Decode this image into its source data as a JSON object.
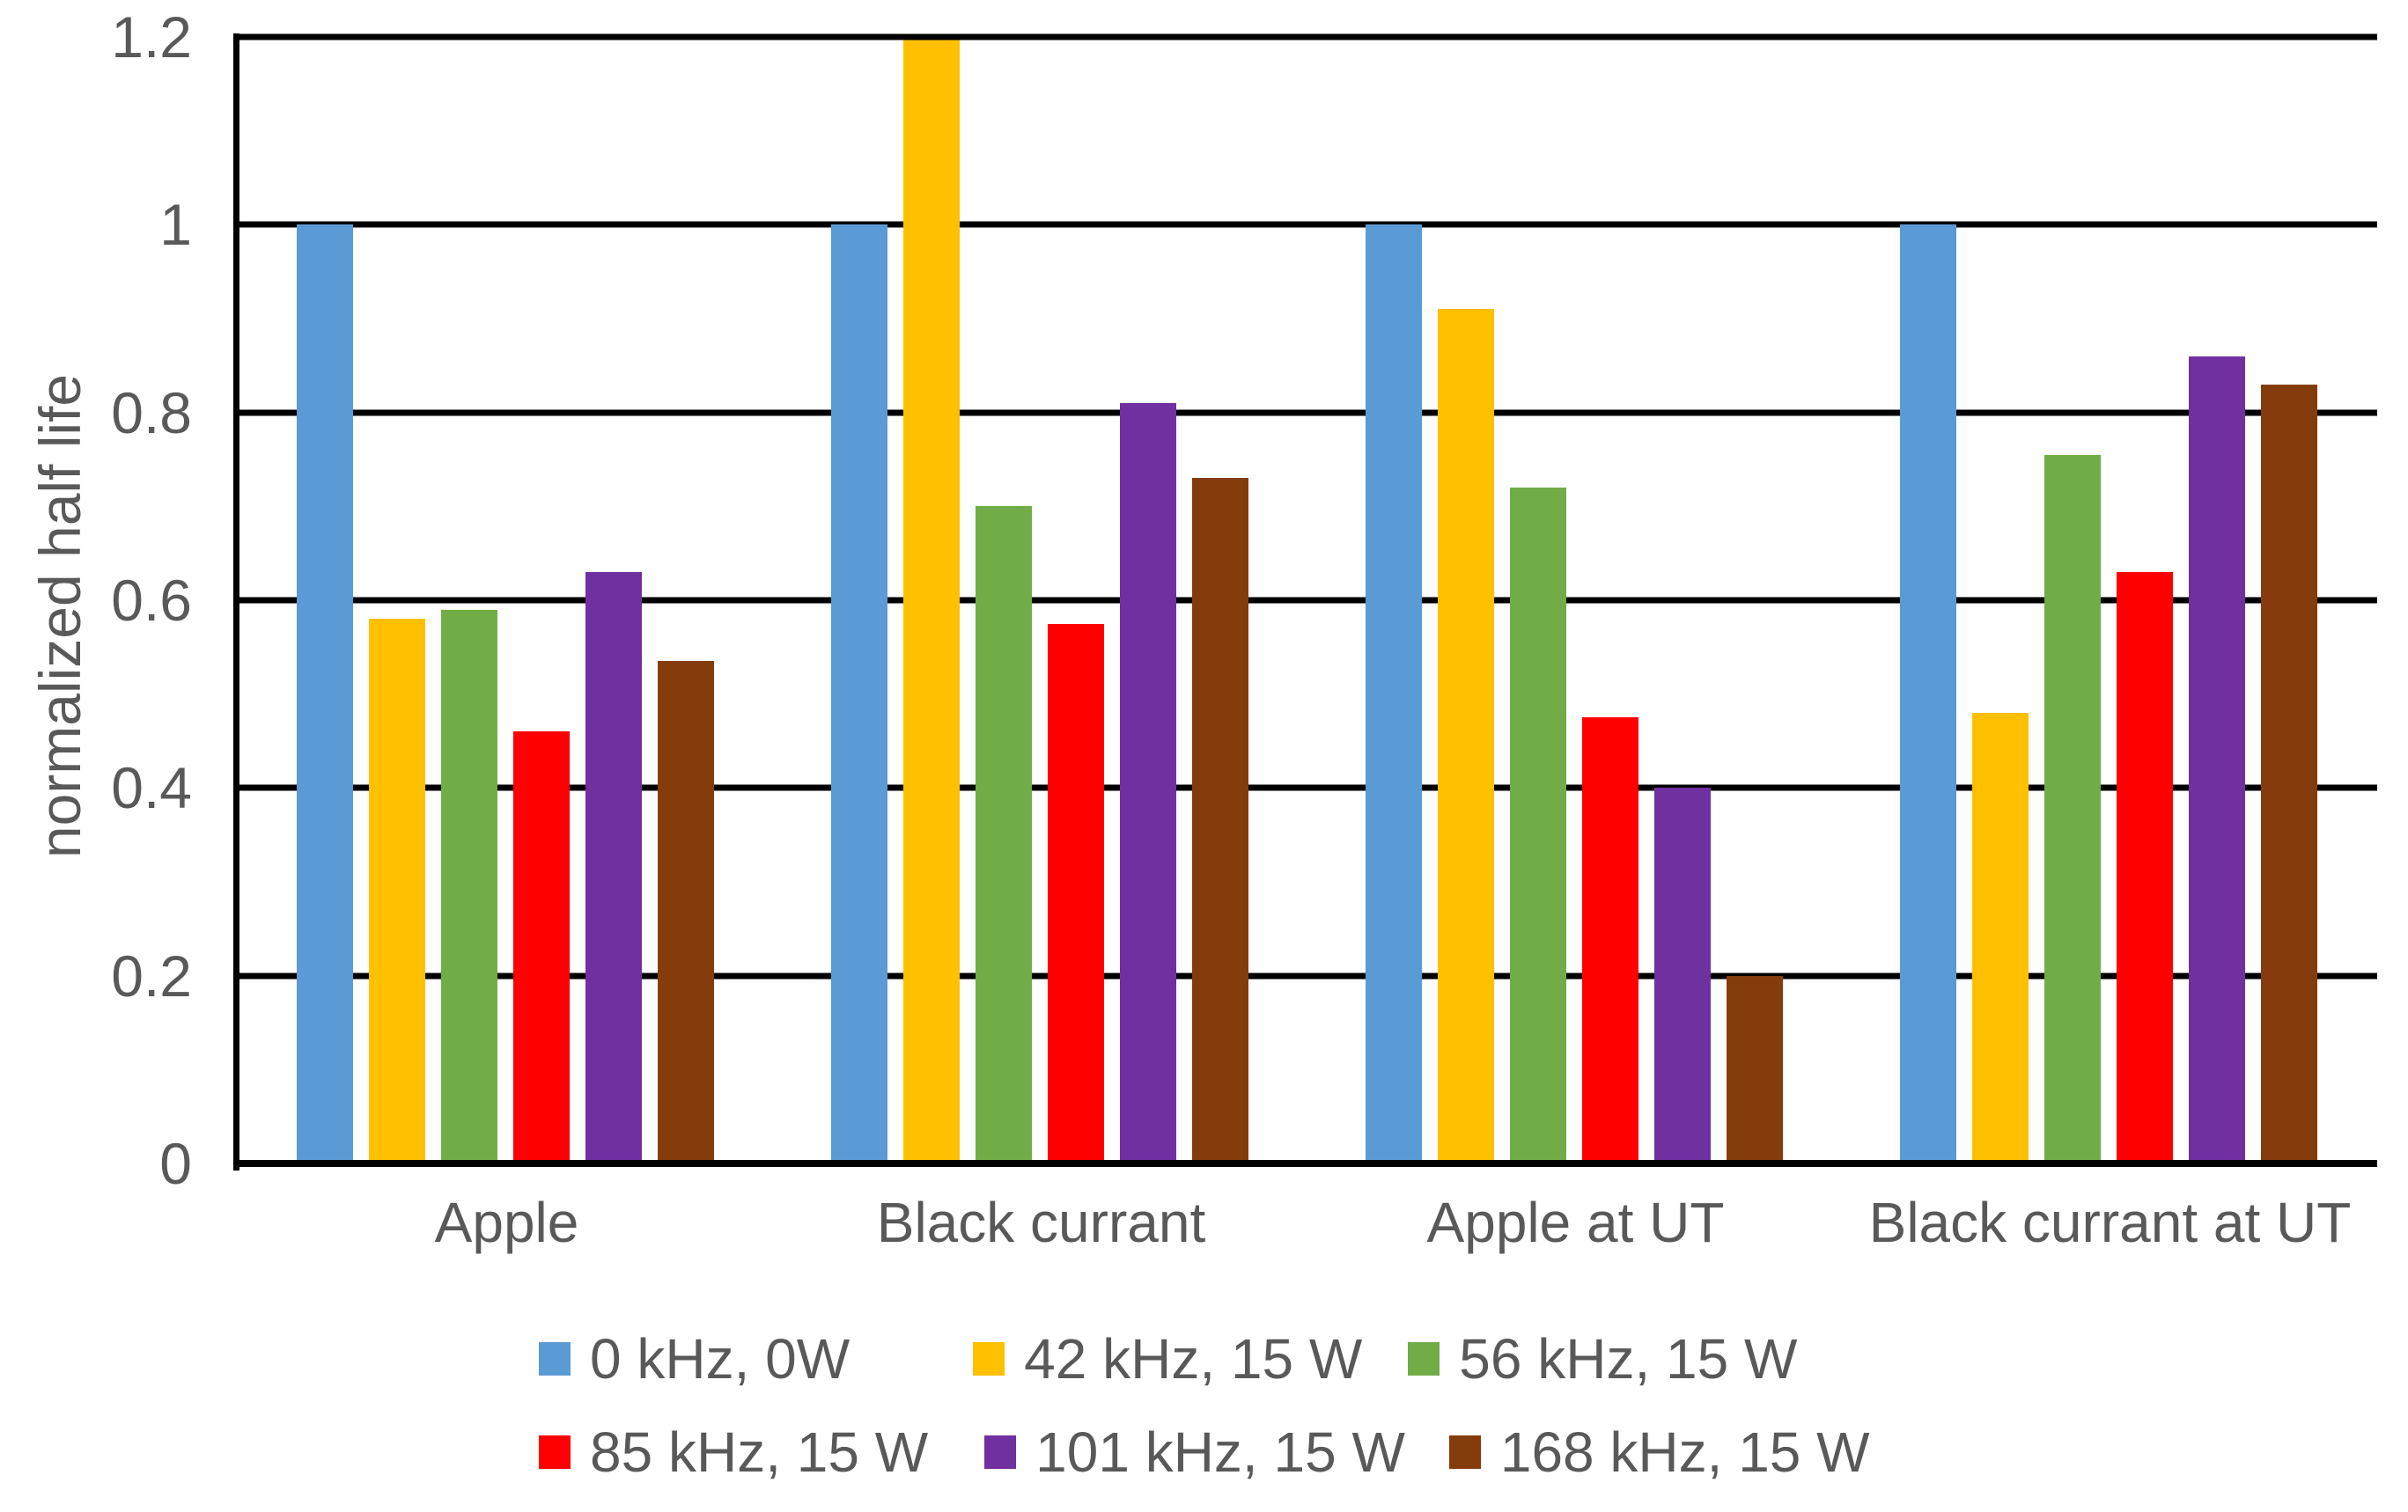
{
  "chart_data": {
    "type": "bar",
    "title": "",
    "xlabel": "",
    "ylabel": "normalized half life",
    "ylim": [
      0,
      1.2
    ],
    "ytick_step": 0.2,
    "yticks": [
      "1.2",
      "1",
      "0.8",
      "0.6",
      "0.4",
      "0.2",
      "0"
    ],
    "grid": "horizontal",
    "gridline_color": "#000000",
    "text_color": "#595959",
    "legend_position": "bottom",
    "legend_rows": [
      [
        0,
        1,
        2
      ],
      [
        3,
        4,
        5
      ]
    ],
    "categories": [
      "Apple",
      "Black currant",
      "Apple at UT",
      "Black currant at UT"
    ],
    "series": [
      {
        "name": "0 kHz, 0W",
        "color": "#5B9BD5",
        "values": [
          1.0,
          1.0,
          1.0,
          1.0
        ]
      },
      {
        "name": "42 kHz, 15 W",
        "color": "#FFC000",
        "values": [
          0.58,
          1.2,
          0.91,
          0.48
        ]
      },
      {
        "name": "56 kHz, 15 W",
        "color": "#70AD47",
        "values": [
          0.59,
          0.7,
          0.72,
          0.755
        ]
      },
      {
        "name": "85 kHz, 15 W",
        "color": "#FF0000",
        "values": [
          0.46,
          0.575,
          0.475,
          0.63
        ]
      },
      {
        "name": "101 kHz, 15 W",
        "color": "#7030A0",
        "values": [
          0.63,
          0.81,
          0.4,
          0.86
        ]
      },
      {
        "name": "168 kHz, 15 W",
        "color": "#843C0C",
        "values": [
          0.535,
          0.73,
          0.2,
          0.83
        ]
      }
    ]
  }
}
